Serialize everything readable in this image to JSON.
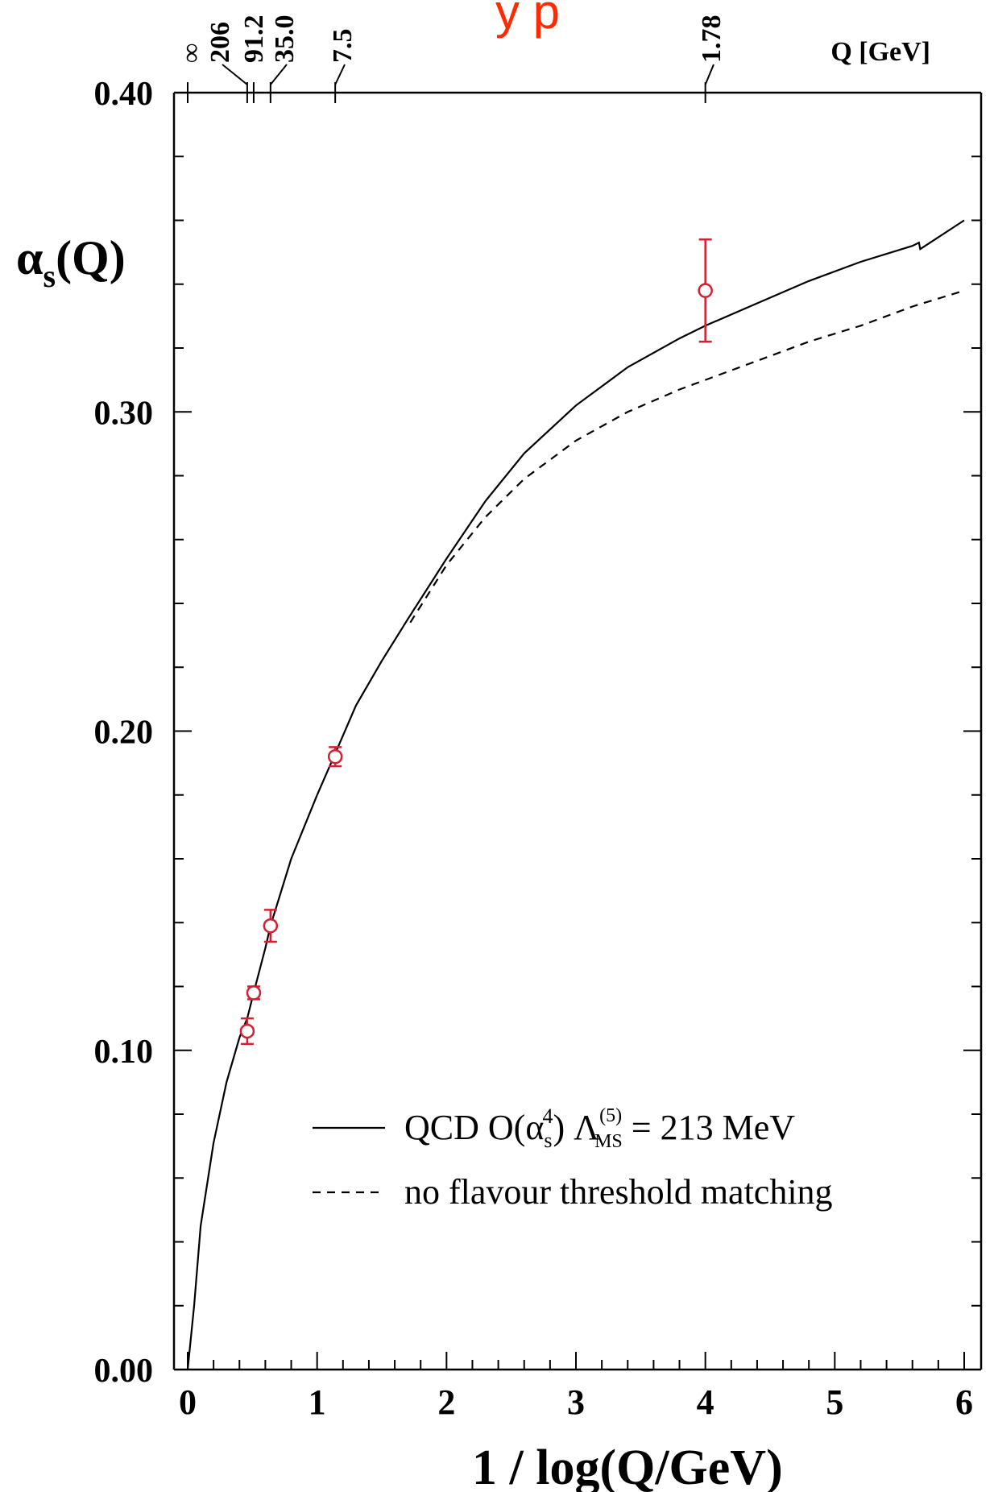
{
  "banner_fragment": "y p",
  "colors": {
    "data_points": "#d42030",
    "curves": "#000000",
    "banner": "#ff2a00"
  },
  "chart_data": {
    "type": "line",
    "xlabel": "1 / log(Q/GeV)",
    "ylabel": "α_s(Q)",
    "ylabel_main": "α",
    "ylabel_sub": "s",
    "ylabel_tail": "(Q)",
    "xlim": [
      0,
      6
    ],
    "ylim": [
      0,
      0.4
    ],
    "x_ticks": [
      "0",
      "1",
      "2",
      "3",
      "4",
      "5",
      "6"
    ],
    "y_ticks": [
      "0.00",
      "0.10",
      "0.20",
      "0.30",
      "0.40"
    ],
    "top_axis": {
      "title": "Q [GeV]",
      "labels": [
        {
          "text": "∞",
          "x": 0.0
        },
        {
          "text": "206",
          "x": 0.46
        },
        {
          "text": "91.2",
          "x": 0.51
        },
        {
          "text": "35.0",
          "x": 0.64
        },
        {
          "text": "7.5",
          "x": 1.14
        },
        {
          "text": "1.78",
          "x": 4.0
        }
      ]
    },
    "series": [
      {
        "name": "QCD O(α_s^4) Λ_MS^(5) = 213 MeV",
        "style": "solid",
        "x": [
          0.0,
          0.05,
          0.1,
          0.2,
          0.3,
          0.4,
          0.46,
          0.51,
          0.6,
          0.64,
          0.8,
          1.0,
          1.14,
          1.3,
          1.5,
          1.7,
          2.0,
          2.3,
          2.6,
          3.0,
          3.4,
          3.8,
          4.0,
          4.4,
          4.8,
          5.2,
          5.6,
          5.65,
          5.66,
          6.0
        ],
        "y": [
          0.0,
          0.02,
          0.045,
          0.071,
          0.09,
          0.104,
          0.11,
          0.118,
          0.132,
          0.139,
          0.16,
          0.18,
          0.193,
          0.208,
          0.222,
          0.235,
          0.254,
          0.272,
          0.287,
          0.302,
          0.314,
          0.323,
          0.327,
          0.334,
          0.341,
          0.347,
          0.352,
          0.353,
          0.351,
          0.36
        ]
      },
      {
        "name": "no flavour threshold matching",
        "style": "dashed",
        "x": [
          1.72,
          2.0,
          2.3,
          2.6,
          3.0,
          3.4,
          3.8,
          4.0,
          4.4,
          4.8,
          5.2,
          5.6,
          6.0
        ],
        "y": [
          0.234,
          0.252,
          0.267,
          0.279,
          0.291,
          0.3,
          0.307,
          0.31,
          0.316,
          0.322,
          0.327,
          0.333,
          0.338
        ]
      }
    ],
    "data_points": {
      "name": "measurements",
      "points": [
        {
          "x": 0.46,
          "y": 0.106,
          "err": 0.004
        },
        {
          "x": 0.51,
          "y": 0.118,
          "err": 0.002
        },
        {
          "x": 0.64,
          "y": 0.139,
          "err": 0.005
        },
        {
          "x": 1.14,
          "y": 0.192,
          "err": 0.003
        },
        {
          "x": 4.0,
          "y": 0.338,
          "err": 0.016
        }
      ]
    },
    "legend": {
      "placement": "bottom-right",
      "entries": [
        {
          "style": "solid",
          "label": "QCD O(α_s^4) Λ_MS^(5) = 213 MeV"
        },
        {
          "style": "dashed",
          "label": "no flavour threshold matching"
        }
      ]
    },
    "legend_text": {
      "qcd_prefix": "QCD O(α",
      "qcd_sub": "s",
      "qcd_sup": "4",
      "qcd_mid": ") Λ",
      "lambda_sup": "(5)",
      "lambda_sub": "MS",
      "qcd_suffix": " = 213 MeV",
      "dashed_label": "no flavour threshold matching"
    }
  }
}
